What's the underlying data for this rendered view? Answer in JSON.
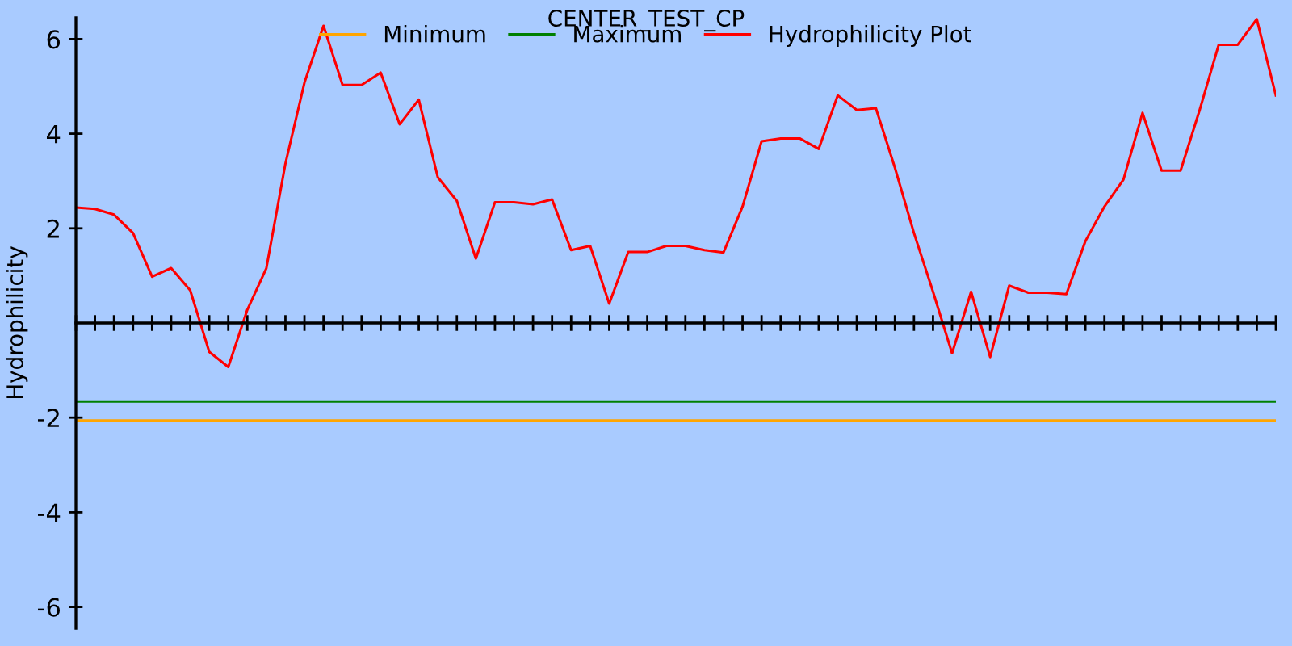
{
  "chart_data": {
    "type": "line",
    "title": "CENTER_TEST_CP",
    "ylabel": "Hydrophilicity",
    "categories": [
      null,
      null,
      null,
      null,
      null,
      null,
      null,
      null,
      null,
      null,
      null,
      null,
      null,
      null,
      null,
      null,
      null,
      null,
      null,
      null,
      null,
      null,
      null,
      null,
      null,
      null,
      null,
      null,
      null,
      null,
      null,
      null,
      null,
      null,
      null,
      null,
      null,
      null,
      null,
      null,
      null,
      null,
      null,
      null,
      null,
      null,
      null,
      null,
      null,
      null,
      null,
      null,
      null,
      null,
      null,
      null,
      null,
      null,
      null,
      null,
      null,
      null,
      null,
      null
    ],
    "series": [
      {
        "name": "Minimum",
        "color": "#ffa500",
        "values": [
          -2.06,
          -2.06,
          -2.06,
          -2.06,
          -2.06,
          -2.06,
          -2.06,
          -2.06,
          -2.06,
          -2.06,
          -2.06,
          -2.06,
          -2.06,
          -2.06,
          -2.06,
          -2.06,
          -2.06,
          -2.06,
          -2.06,
          -2.06,
          -2.06,
          -2.06,
          -2.06,
          -2.06,
          -2.06,
          -2.06,
          -2.06,
          -2.06,
          -2.06,
          -2.06,
          -2.06,
          -2.06,
          -2.06,
          -2.06,
          -2.06,
          -2.06,
          -2.06,
          -2.06,
          -2.06,
          -2.06,
          -2.06,
          -2.06,
          -2.06,
          -2.06,
          -2.06,
          -2.06,
          -2.06,
          -2.06,
          -2.06,
          -2.06,
          -2.06,
          -2.06,
          -2.06,
          -2.06,
          -2.06,
          -2.06,
          -2.06,
          -2.06,
          -2.06,
          -2.06,
          -2.06,
          -2.06,
          -2.06,
          -2.06
        ]
      },
      {
        "name": "Maximum",
        "color": "#008000",
        "values": [
          -1.66,
          -1.66,
          -1.66,
          -1.66,
          -1.66,
          -1.66,
          -1.66,
          -1.66,
          -1.66,
          -1.66,
          -1.66,
          -1.66,
          -1.66,
          -1.66,
          -1.66,
          -1.66,
          -1.66,
          -1.66,
          -1.66,
          -1.66,
          -1.66,
          -1.66,
          -1.66,
          -1.66,
          -1.66,
          -1.66,
          -1.66,
          -1.66,
          -1.66,
          -1.66,
          -1.66,
          -1.66,
          -1.66,
          -1.66,
          -1.66,
          -1.66,
          -1.66,
          -1.66,
          -1.66,
          -1.66,
          -1.66,
          -1.66,
          -1.66,
          -1.66,
          -1.66,
          -1.66,
          -1.66,
          -1.66,
          -1.66,
          -1.66,
          -1.66,
          -1.66,
          -1.66,
          -1.66,
          -1.66,
          -1.66,
          -1.66,
          -1.66,
          -1.66,
          -1.66,
          -1.66,
          -1.66,
          -1.66,
          -1.66
        ]
      },
      {
        "name": "Hydrophilicity Plot",
        "color": "#ff0000",
        "values": [
          2.44,
          2.41,
          2.29,
          1.9,
          0.98,
          1.16,
          0.69,
          -0.61,
          -0.93,
          0.28,
          1.16,
          3.37,
          5.08,
          6.28,
          5.03,
          5.03,
          5.29,
          4.2,
          4.72,
          3.08,
          2.58,
          1.36,
          2.55,
          2.55,
          2.51,
          2.61,
          1.54,
          1.63,
          0.41,
          1.5,
          1.5,
          1.63,
          1.63,
          1.54,
          1.49,
          2.46,
          3.84,
          3.9,
          3.9,
          3.68,
          4.81,
          4.5,
          4.54,
          3.28,
          1.9,
          0.66,
          -0.64,
          0.66,
          -0.72,
          0.79,
          0.64,
          0.64,
          0.61,
          1.73,
          2.46,
          3.03,
          4.44,
          3.22,
          3.22,
          4.5,
          5.88,
          5.88,
          6.42,
          4.81
        ]
      }
    ],
    "ylim": [
      -6.45,
      6.45
    ],
    "yticks": [
      -6,
      -4,
      -2,
      2,
      4,
      6
    ],
    "tick_labels": "y",
    "legend": "top",
    "marker": "none",
    "line_style": "solid"
  }
}
